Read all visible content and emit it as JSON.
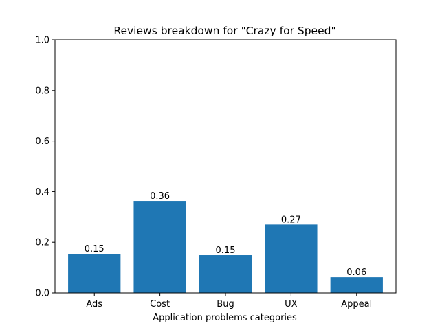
{
  "chart_data": {
    "type": "bar",
    "title": "Reviews breakdown for \"Crazy for Speed\"",
    "xlabel": "Application problems categories",
    "ylabel": "",
    "categories": [
      "Ads",
      "Cost",
      "Bug",
      "UX",
      "Appeal"
    ],
    "values": [
      0.154,
      0.363,
      0.149,
      0.27,
      0.062
    ],
    "data_labels": [
      "0.15",
      "0.36",
      "0.15",
      "0.27",
      "0.06"
    ],
    "ylim": [
      0,
      1.0
    ],
    "yticks": [
      0.0,
      0.2,
      0.4,
      0.6,
      0.8,
      1.0
    ],
    "ytick_labels": [
      "0.0",
      "0.2",
      "0.4",
      "0.6",
      "0.8",
      "1.0"
    ],
    "grid": false,
    "legend": "none",
    "bar_color": "#1f77b4"
  }
}
